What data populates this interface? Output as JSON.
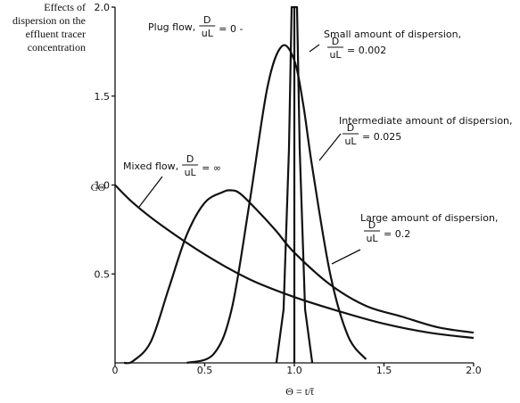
{
  "chart_data": {
    "type": "line",
    "title": "Effects of dispersion on the effluent tracer concentration",
    "title_lines": [
      "Effects of",
      "dispersion on the",
      "effluent tracer",
      "concentration"
    ],
    "xlabel": "Θ = t/t̄",
    "ylabel": "CΘ",
    "xlim": [
      0,
      2.0
    ],
    "ylim": [
      0,
      2.0
    ],
    "x_ticks": [
      "0",
      "0.5",
      "1.0",
      "1.5",
      "2.0"
    ],
    "y_ticks": [
      "0.5",
      "1.0",
      "1.5",
      "2.0"
    ],
    "series": [
      {
        "key": "plug",
        "label_text": "Plug flow,",
        "param": "0",
        "x": [
          1.0,
          1.0,
          1.0
        ],
        "y": [
          0,
          2.0,
          2.0
        ]
      },
      {
        "key": "small",
        "label_text": "Small amount of dispersion,",
        "param": "0.002",
        "x": [
          0.9,
          0.94,
          0.97,
          0.985,
          1.0,
          1.015,
          1.03,
          1.06,
          1.1
        ],
        "y": [
          0.0,
          0.3,
          1.2,
          2.0,
          2.0,
          2.0,
          1.2,
          0.3,
          0.0
        ]
      },
      {
        "key": "intermediate",
        "label_text": "Intermediate amount of dispersion,",
        "param": "0.025",
        "x": [
          0.4,
          0.55,
          0.65,
          0.75,
          0.85,
          0.93,
          1.0,
          1.05,
          1.1,
          1.2,
          1.3,
          1.4
        ],
        "y": [
          0.0,
          0.05,
          0.3,
          0.9,
          1.55,
          1.78,
          1.7,
          1.45,
          1.1,
          0.5,
          0.15,
          0.02
        ]
      },
      {
        "key": "large",
        "label_text": "Large amount of dispersion,",
        "param": "0.2",
        "x": [
          0.05,
          0.1,
          0.2,
          0.3,
          0.4,
          0.5,
          0.6,
          0.65,
          0.7,
          0.8,
          0.9,
          1.0,
          1.2,
          1.4,
          1.6,
          1.8,
          2.0
        ],
        "y": [
          0.0,
          0.01,
          0.12,
          0.42,
          0.72,
          0.9,
          0.96,
          0.97,
          0.95,
          0.85,
          0.74,
          0.62,
          0.44,
          0.32,
          0.26,
          0.2,
          0.17
        ]
      },
      {
        "key": "mixed",
        "label_text": "Mixed flow,",
        "param": "∞",
        "x": [
          0,
          0.1,
          0.25,
          0.5,
          0.75,
          1.0,
          1.25,
          1.5,
          1.75,
          2.0
        ],
        "y": [
          1.0,
          0.9,
          0.78,
          0.61,
          0.47,
          0.37,
          0.29,
          0.22,
          0.17,
          0.14
        ]
      }
    ],
    "d_over_ul": {
      "num": "D",
      "den": "uL"
    },
    "grid": false,
    "legend": "none"
  }
}
